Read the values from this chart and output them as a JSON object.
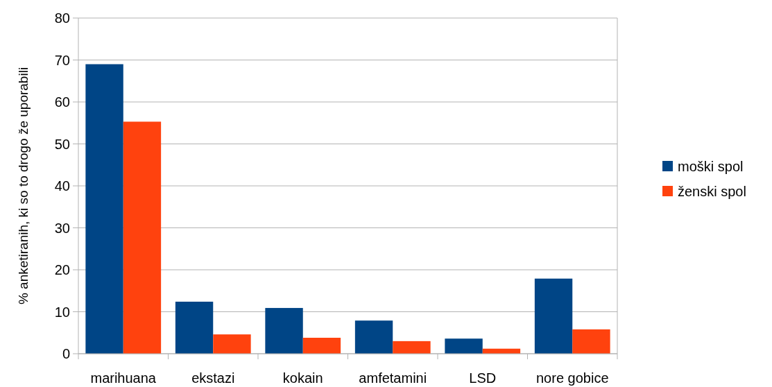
{
  "chart_data": {
    "type": "bar",
    "ylabel": "% anketiranih, ki so to drogo že uporabili",
    "categories": [
      "marihuana",
      "ekstazi",
      "kokain",
      "amfetamini",
      "LSD",
      "nore gobice"
    ],
    "series": [
      {
        "name": "moški spol",
        "color": "#004586",
        "values": [
          69,
          12.4,
          10.9,
          7.9,
          3.6,
          17.9
        ]
      },
      {
        "name": "ženski spol",
        "color": "#ff420e",
        "values": [
          55.3,
          4.6,
          3.8,
          3.0,
          1.2,
          5.8
        ]
      }
    ],
    "ylim": [
      0,
      80
    ],
    "yticks": [
      0,
      10,
      20,
      30,
      40,
      50,
      60,
      70,
      80
    ],
    "grid": "y",
    "legend": "right"
  }
}
